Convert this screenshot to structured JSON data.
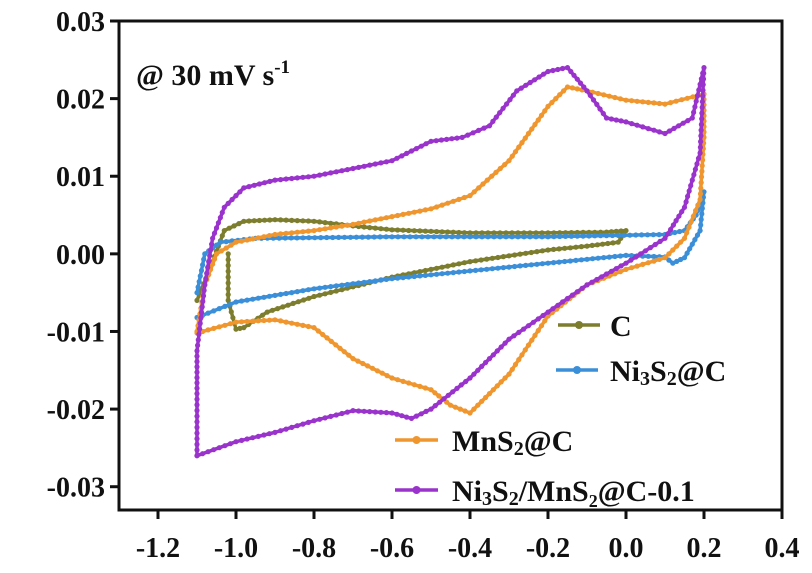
{
  "chart_data": {
    "type": "line",
    "title": "",
    "xlabel": "",
    "ylabel": "",
    "annotation": "@ 30 mV s",
    "annotation_sup": "-1",
    "xlim": [
      -1.3,
      0.4
    ],
    "ylim": [
      -0.033,
      0.03
    ],
    "x_ticks": [
      -1.2,
      -1.0,
      -0.8,
      -0.6,
      -0.4,
      -0.2,
      0.0,
      0.2,
      0.4
    ],
    "x_tick_labels": [
      "-1.2",
      "-1.0",
      "-0.8",
      "-0.6",
      "-0.4",
      "-0.2",
      "0.0",
      "0.2",
      "0.4"
    ],
    "y_ticks": [
      0.03,
      0.02,
      0.01,
      0.0,
      -0.01,
      -0.02,
      -0.03
    ],
    "y_tick_labels": [
      "0.03",
      "0.02",
      "0.01",
      "0.00",
      "-0.01",
      "-0.02",
      "-0.03"
    ],
    "grid": false,
    "legend_position": "bottom-right",
    "series": [
      {
        "name": "C",
        "legend": {
          "pre": "C",
          "sub1": "",
          "mid": "",
          "sub2": "",
          "post": ""
        },
        "color": "#7d7d2e",
        "points": [
          [
            -1.1,
            -0.006
          ],
          [
            -1.06,
            -0.001
          ],
          [
            -1.03,
            0.003
          ],
          [
            -0.98,
            0.0042
          ],
          [
            -0.9,
            0.0044
          ],
          [
            -0.8,
            0.0042
          ],
          [
            -0.7,
            0.0036
          ],
          [
            -0.6,
            0.0031
          ],
          [
            -0.4,
            0.0027
          ],
          [
            -0.2,
            0.0027
          ],
          [
            -0.05,
            0.0028
          ],
          [
            0.0,
            0.003
          ],
          [
            -0.02,
            0.0015
          ],
          [
            -0.1,
            0.001
          ],
          [
            -0.2,
            0.0005
          ],
          [
            -0.4,
            -0.001
          ],
          [
            -0.6,
            -0.003
          ],
          [
            -0.8,
            -0.0055
          ],
          [
            -0.92,
            -0.0075
          ],
          [
            -0.98,
            -0.0095
          ],
          [
            -1.0,
            -0.0097
          ],
          [
            -1.02,
            -0.006
          ],
          [
            -1.02,
            0.0
          ]
        ]
      },
      {
        "name": "Ni3S2@C",
        "legend": {
          "pre": "Ni",
          "sub1": "3",
          "mid": "S",
          "sub2": "2",
          "post": "@C"
        },
        "color": "#3b8fd9",
        "points": [
          [
            -1.1,
            -0.005
          ],
          [
            -1.08,
            0.0
          ],
          [
            -1.04,
            0.0015
          ],
          [
            -0.95,
            0.002
          ],
          [
            -0.6,
            0.0022
          ],
          [
            -0.2,
            0.0022
          ],
          [
            0.1,
            0.0025
          ],
          [
            0.15,
            0.003
          ],
          [
            0.18,
            0.005
          ],
          [
            0.2,
            0.008
          ],
          [
            0.19,
            0.003
          ],
          [
            0.15,
            -0.0005
          ],
          [
            0.12,
            -0.0012
          ],
          [
            0.1,
            -0.0004
          ],
          [
            0.0,
            -0.0002
          ],
          [
            -0.2,
            -0.0012
          ],
          [
            -0.4,
            -0.0022
          ],
          [
            -0.6,
            -0.0032
          ],
          [
            -0.8,
            -0.0045
          ],
          [
            -1.0,
            -0.0062
          ],
          [
            -1.1,
            -0.0082
          ]
        ]
      },
      {
        "name": "MnS2@C",
        "legend": {
          "pre": "MnS",
          "sub1": "2",
          "mid": "@C",
          "sub2": "",
          "post": ""
        },
        "color": "#f0962e",
        "points": [
          [
            -1.1,
            -0.01
          ],
          [
            -1.08,
            -0.004
          ],
          [
            -1.05,
            0.0
          ],
          [
            -1.0,
            0.0015
          ],
          [
            -0.9,
            0.0025
          ],
          [
            -0.8,
            0.003
          ],
          [
            -0.7,
            0.0038
          ],
          [
            -0.6,
            0.0048
          ],
          [
            -0.5,
            0.0058
          ],
          [
            -0.4,
            0.0075
          ],
          [
            -0.3,
            0.012
          ],
          [
            -0.2,
            0.019
          ],
          [
            -0.15,
            0.0215
          ],
          [
            -0.1,
            0.021
          ],
          [
            0.0,
            0.0198
          ],
          [
            0.1,
            0.0193
          ],
          [
            0.2,
            0.0206
          ],
          [
            0.2,
            0.015
          ],
          [
            0.19,
            0.007
          ],
          [
            0.15,
            0.002
          ],
          [
            0.1,
            -0.0005
          ],
          [
            0.0,
            -0.002
          ],
          [
            -0.1,
            -0.004
          ],
          [
            -0.2,
            -0.008
          ],
          [
            -0.3,
            -0.0155
          ],
          [
            -0.4,
            -0.0205
          ],
          [
            -0.45,
            -0.0195
          ],
          [
            -0.5,
            -0.0175
          ],
          [
            -0.6,
            -0.016
          ],
          [
            -0.7,
            -0.0135
          ],
          [
            -0.8,
            -0.0095
          ],
          [
            -0.9,
            -0.0085
          ],
          [
            -1.0,
            -0.0088
          ],
          [
            -1.1,
            -0.0102
          ]
        ]
      },
      {
        "name": "Ni3S2/MnS2@C-0.1",
        "legend": {
          "pre": "Ni",
          "sub1": "3",
          "mid": "S",
          "sub2": "2",
          "post": "/MnS₂@C-0.1"
        },
        "color": "#9933cc",
        "points": [
          [
            -1.1,
            -0.026
          ],
          [
            -1.1,
            -0.018
          ],
          [
            -1.1,
            -0.0125
          ],
          [
            -1.08,
            -0.004
          ],
          [
            -1.06,
            0.002
          ],
          [
            -1.03,
            0.006
          ],
          [
            -0.98,
            0.0085
          ],
          [
            -0.9,
            0.0095
          ],
          [
            -0.8,
            0.01
          ],
          [
            -0.7,
            0.011
          ],
          [
            -0.6,
            0.012
          ],
          [
            -0.5,
            0.0145
          ],
          [
            -0.42,
            0.015
          ],
          [
            -0.35,
            0.0165
          ],
          [
            -0.28,
            0.021
          ],
          [
            -0.2,
            0.0235
          ],
          [
            -0.15,
            0.024
          ],
          [
            -0.1,
            0.021
          ],
          [
            -0.05,
            0.0175
          ],
          [
            0.0,
            0.017
          ],
          [
            0.1,
            0.0155
          ],
          [
            0.17,
            0.0175
          ],
          [
            0.2,
            0.024
          ],
          [
            0.19,
            0.013
          ],
          [
            0.15,
            0.006
          ],
          [
            0.1,
            0.002
          ],
          [
            0.0,
            -0.0012
          ],
          [
            -0.1,
            -0.004
          ],
          [
            -0.2,
            -0.0075
          ],
          [
            -0.3,
            -0.011
          ],
          [
            -0.4,
            -0.016
          ],
          [
            -0.5,
            -0.02
          ],
          [
            -0.55,
            -0.0212
          ],
          [
            -0.6,
            -0.0205
          ],
          [
            -0.7,
            -0.0202
          ],
          [
            -0.8,
            -0.0215
          ],
          [
            -0.9,
            -0.023
          ],
          [
            -1.0,
            -0.0242
          ],
          [
            -1.1,
            -0.026
          ]
        ]
      }
    ]
  }
}
